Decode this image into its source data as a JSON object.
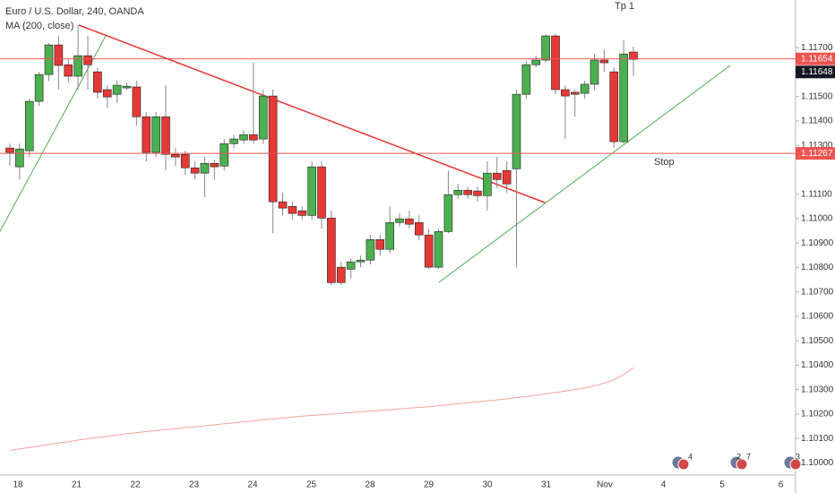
{
  "chart_data": {
    "type": "candlestick",
    "title": "Euro / U.S. Dollar, 240, OANDA",
    "indicator": "MA (200, close)",
    "annotations": [
      "Tp 1",
      "Stop"
    ],
    "x_labels": [
      "18",
      "21",
      "22",
      "23",
      "24",
      "25",
      "28",
      "29",
      "30",
      "31",
      "Nov",
      "4",
      "5",
      "6"
    ],
    "open": [
      1.11289,
      1.11212,
      1.11278,
      1.1148,
      1.1159,
      1.11711,
      1.1163,
      1.11583,
      1.11667,
      1.11601,
      1.11528,
      1.11509,
      1.11535,
      1.11539,
      1.11417,
      1.11271,
      1.11417,
      1.11263,
      1.11263,
      1.11208,
      1.11186,
      1.11226,
      1.11215,
      1.11307,
      1.11322,
      1.11344,
      1.11326,
      1.11502,
      1.11069,
      1.1105,
      1.11032,
      1.11013,
      1.11212,
      1.11002,
      1.10801,
      1.10793,
      1.10823,
      1.1083,
      1.10914,
      1.10874,
      1.10984,
      1.10999,
      1.10984,
      1.10933,
      1.10801,
      1.10947,
      1.11098,
      1.11116,
      1.11113,
      1.11094,
      1.11186,
      1.11197,
      1.11204,
      1.11509,
      1.1163,
      1.11649,
      1.11748,
      1.11528,
      1.11517,
      1.11513,
      1.1155,
      1.11649,
      1.11601,
      1.11315,
      1.11682
    ],
    "high": [
      1.11307,
      1.11307,
      1.11491,
      1.11601,
      1.11718,
      1.11748,
      1.11656,
      1.11792,
      1.11748,
      1.11619,
      1.11546,
      1.11564,
      1.11557,
      1.11564,
      1.11436,
      1.11436,
      1.11546,
      1.11289,
      1.11278,
      1.11234,
      1.11252,
      1.11241,
      1.11326,
      1.11344,
      1.11362,
      1.11638,
      1.11528,
      1.11528,
      1.11105,
      1.11069,
      1.1105,
      1.11234,
      1.11234,
      1.11032,
      1.10823,
      1.10837,
      1.10848,
      1.10933,
      1.10933,
      1.1105,
      1.11021,
      1.11032,
      1.11013,
      1.10958,
      1.10958,
      1.11197,
      1.11142,
      1.11131,
      1.11131,
      1.11234,
      1.11252,
      1.11234,
      1.11528,
      1.11645,
      1.11667,
      1.11755,
      1.11755,
      1.11546,
      1.11528,
      1.11564,
      1.11674,
      1.11693,
      1.11619,
      1.1173,
      1.11704
    ],
    "low": [
      1.11215,
      1.1116,
      1.11252,
      1.11461,
      1.11564,
      1.11528,
      1.11557,
      1.11528,
      1.11528,
      1.11491,
      1.11454,
      1.11472,
      1.11528,
      1.11381,
      1.11234,
      1.11252,
      1.11197,
      1.11215,
      1.11179,
      1.1116,
      1.11087,
      1.1116,
      1.11197,
      1.11289,
      1.11307,
      1.11307,
      1.11307,
      1.1094,
      1.11013,
      1.10995,
      1.10995,
      1.10995,
      1.10958,
      1.10727,
      1.10727,
      1.10756,
      1.10801,
      1.10812,
      1.10848,
      1.10859,
      1.10969,
      1.10958,
      1.10911,
      1.10793,
      1.10793,
      1.1094,
      1.1108,
      1.1108,
      1.11069,
      1.11032,
      1.11124,
      1.11105,
      1.10801,
      1.11491,
      1.11619,
      1.11638,
      1.11509,
      1.11326,
      1.11417,
      1.11491,
      1.11528,
      1.11601,
      1.11289,
      1.11307,
      1.11583
    ],
    "close": [
      1.11271,
      1.11285,
      1.1148,
      1.1159,
      1.11711,
      1.11627,
      1.11583,
      1.11667,
      1.1163,
      1.11517,
      1.11498,
      1.11546,
      1.11542,
      1.11417,
      1.11271,
      1.11417,
      1.11263,
      1.11252,
      1.11208,
      1.11186,
      1.11226,
      1.11212,
      1.11307,
      1.11326,
      1.11344,
      1.11322,
      1.11502,
      1.11069,
      1.11043,
      1.11021,
      1.11013,
      1.11212,
      1.11002,
      1.10738,
      1.10738,
      1.10823,
      1.1083,
      1.10914,
      1.10874,
      1.10984,
      1.10999,
      1.10977,
      1.10933,
      1.10801,
      1.10947,
      1.11098,
      1.11116,
      1.11098,
      1.11094,
      1.11186,
      1.1116,
      1.11142,
      1.11509,
      1.1163,
      1.11649,
      1.11748,
      1.11528,
      1.11502,
      1.11509,
      1.1155,
      1.11649,
      1.11638,
      1.11315,
      1.11674,
      1.11652
    ],
    "ma_values": [
      1.10051,
      1.10057,
      1.10063,
      1.10069,
      1.10075,
      1.10081,
      1.10087,
      1.10093,
      1.10099,
      1.10104,
      1.10109,
      1.10114,
      1.10119,
      1.10124,
      1.10128,
      1.10132,
      1.10136,
      1.1014,
      1.10144,
      1.10148,
      1.10152,
      1.10156,
      1.1016,
      1.10164,
      1.10168,
      1.10172,
      1.10176,
      1.1018,
      1.10184,
      1.10188,
      1.10191,
      1.10194,
      1.10197,
      1.102,
      1.10203,
      1.10206,
      1.10209,
      1.10212,
      1.10215,
      1.10218,
      1.10221,
      1.10224,
      1.10227,
      1.1023,
      1.10234,
      1.10238,
      1.10242,
      1.10246,
      1.1025,
      1.10254,
      1.10258,
      1.10262,
      1.10267,
      1.10272,
      1.10277,
      1.10282,
      1.10288,
      1.10294,
      1.103,
      1.10307,
      1.10316,
      1.10326,
      1.1034,
      1.10362,
      1.10389
    ],
    "up_color": "#4caf50",
    "down_color": "#e53935",
    "ma_color": "#f5a39b",
    "line_color": "#ef5350",
    "ylim": [
      1.0995,
      1.11895
    ],
    "yticks": [
      {
        "value": 1.117,
        "label": "1.11700"
      },
      {
        "value": 1.115,
        "label": "1.11500"
      },
      {
        "value": 1.114,
        "label": "1.11400"
      },
      {
        "value": 1.113,
        "label": "1.11300"
      },
      {
        "value": 1.111,
        "label": "1.11100"
      },
      {
        "value": 1.11,
        "label": "1.11000"
      },
      {
        "value": 1.109,
        "label": "1.10900"
      },
      {
        "value": 1.108,
        "label": "1.10800"
      },
      {
        "value": 1.107,
        "label": "1.10700"
      },
      {
        "value": 1.106,
        "label": "1.10600"
      },
      {
        "value": 1.105,
        "label": "1.10500"
      },
      {
        "value": 1.104,
        "label": "1.10400"
      },
      {
        "value": 1.103,
        "label": "1.10300"
      },
      {
        "value": 1.102,
        "label": "1.10200"
      },
      {
        "value": 1.101,
        "label": "1.10100"
      },
      {
        "value": 1.1,
        "label": "1.10000"
      }
    ],
    "price_lines": [
      {
        "value": 1.11654,
        "label": "1.11654"
      },
      {
        "value": 1.11267,
        "label": "1.11267"
      }
    ],
    "last_price": {
      "value": 1.11648,
      "label": "1.11648"
    },
    "events": [
      "4",
      "2",
      "7",
      "3"
    ]
  }
}
